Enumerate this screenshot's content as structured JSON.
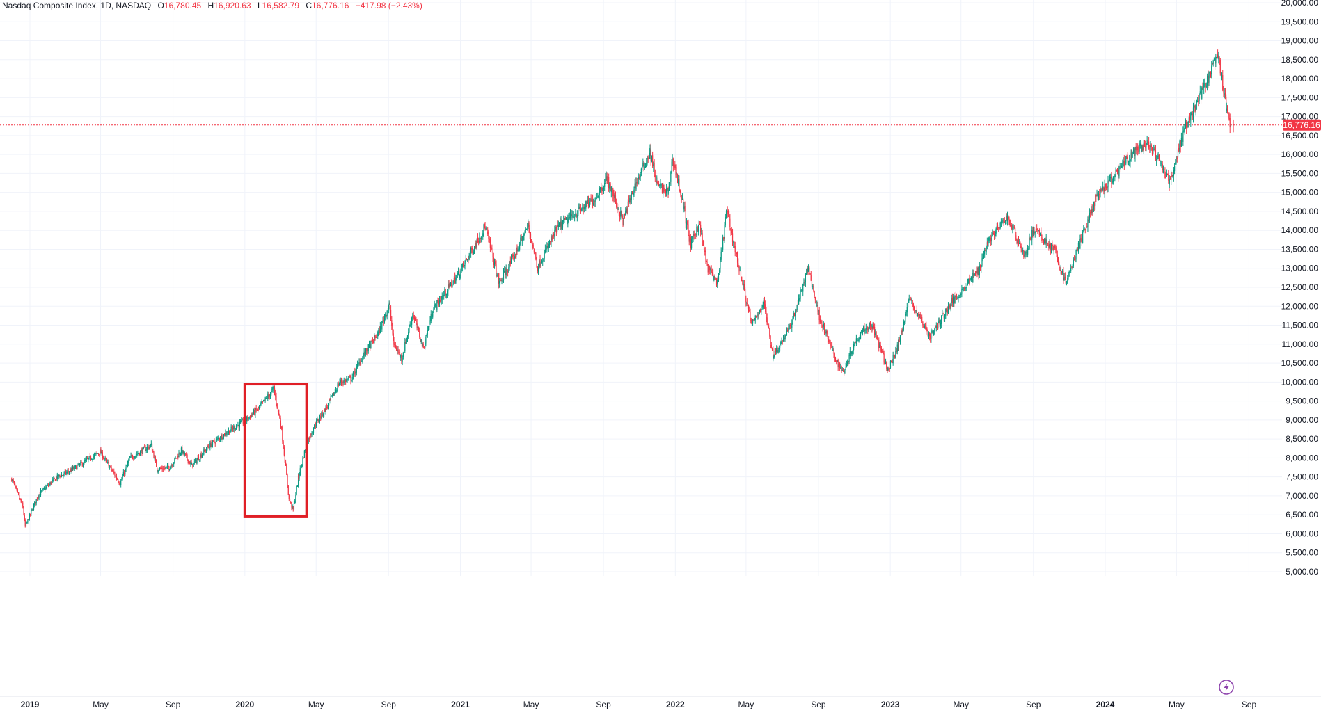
{
  "legend": {
    "symbol": "Nasdaq Composite Index, 1D, NASDAQ",
    "o_label": "O",
    "o_value": "16,780.45",
    "h_label": "H",
    "h_value": "16,920.63",
    "l_label": "L",
    "l_value": "16,582.79",
    "c_label": "C",
    "c_value": "16,776.16",
    "change": "−417.98 (−2.43%)"
  },
  "price_tag": "16,776.16",
  "icon": "lightning-icon",
  "colors": {
    "up": "#089981",
    "down": "#f23645",
    "highlight": "#e01f26",
    "grid": "#f0f3fa",
    "tag": "#f23645"
  },
  "chart_data": {
    "type": "candlestick",
    "title": "Nasdaq Composite Index, 1D, NASDAQ",
    "ylim": [
      5000,
      20000
    ],
    "y_ticks": [
      "20,000.00",
      "19,500.00",
      "19,000.00",
      "18,500.00",
      "18,000.00",
      "17,500.00",
      "17,000.00",
      "16,500.00",
      "16,000.00",
      "15,500.00",
      "15,000.00",
      "14,500.00",
      "14,000.00",
      "13,500.00",
      "13,000.00",
      "12,500.00",
      "12,000.00",
      "11,500.00",
      "11,000.00",
      "10,500.00",
      "10,000.00",
      "9,500.00",
      "9,000.00",
      "8,500.00",
      "8,000.00",
      "7,500.00",
      "7,000.00",
      "6,500.00",
      "6,000.00",
      "5,500.00",
      "5,000.00"
    ],
    "x_ticks": [
      {
        "label": "2019",
        "date": "2019-01-01",
        "year": true
      },
      {
        "label": "May",
        "date": "2019-05-01"
      },
      {
        "label": "Sep",
        "date": "2019-09-01"
      },
      {
        "label": "2020",
        "date": "2020-01-01",
        "year": true
      },
      {
        "label": "May",
        "date": "2020-05-01"
      },
      {
        "label": "Sep",
        "date": "2020-09-01"
      },
      {
        "label": "2021",
        "date": "2021-01-01",
        "year": true
      },
      {
        "label": "May",
        "date": "2021-05-01"
      },
      {
        "label": "Sep",
        "date": "2021-09-01"
      },
      {
        "label": "2022",
        "date": "2022-01-01",
        "year": true
      },
      {
        "label": "May",
        "date": "2022-05-01"
      },
      {
        "label": "Sep",
        "date": "2022-09-01"
      },
      {
        "label": "2023",
        "date": "2023-01-01",
        "year": true
      },
      {
        "label": "May",
        "date": "2023-05-01"
      },
      {
        "label": "Sep",
        "date": "2023-09-01"
      },
      {
        "label": "2024",
        "date": "2024-01-01",
        "year": true
      },
      {
        "label": "May",
        "date": "2024-05-01"
      },
      {
        "label": "Sep",
        "date": "2024-09-01"
      }
    ],
    "last_close": 16776.16,
    "series": [
      {
        "points": [
          [
            "2018-12-01",
            7450
          ],
          [
            "2018-12-20",
            6700
          ],
          [
            "2018-12-24",
            6190
          ],
          [
            "2019-01-15",
            7020
          ],
          [
            "2019-02-15",
            7480
          ],
          [
            "2019-03-15",
            7700
          ],
          [
            "2019-04-30",
            8160
          ],
          [
            "2019-05-15",
            7800
          ],
          [
            "2019-06-03",
            7330
          ],
          [
            "2019-06-20",
            8000
          ],
          [
            "2019-07-26",
            8330
          ],
          [
            "2019-08-05",
            7700
          ],
          [
            "2019-08-26",
            7750
          ],
          [
            "2019-09-15",
            8200
          ],
          [
            "2019-10-03",
            7800
          ],
          [
            "2019-10-31",
            8300
          ],
          [
            "2019-11-30",
            8660
          ],
          [
            "2019-12-31",
            8970
          ],
          [
            "2020-01-24",
            9300
          ],
          [
            "2020-02-19",
            9820
          ],
          [
            "2020-03-02",
            8900
          ],
          [
            "2020-03-09",
            7950
          ],
          [
            "2020-03-16",
            6900
          ],
          [
            "2020-03-23",
            6630
          ],
          [
            "2020-04-01",
            7500
          ],
          [
            "2020-04-15",
            8400
          ],
          [
            "2020-04-30",
            8900
          ],
          [
            "2020-05-20",
            9370
          ],
          [
            "2020-06-10",
            10000
          ],
          [
            "2020-06-30",
            10100
          ],
          [
            "2020-07-20",
            10700
          ],
          [
            "2020-08-15",
            11300
          ],
          [
            "2020-09-02",
            12050
          ],
          [
            "2020-09-10",
            11000
          ],
          [
            "2020-09-23",
            10630
          ],
          [
            "2020-10-12",
            11800
          ],
          [
            "2020-10-30",
            10900
          ],
          [
            "2020-11-15",
            11900
          ],
          [
            "2020-12-31",
            12900
          ],
          [
            "2021-02-12",
            14100
          ],
          [
            "2021-03-08",
            12600
          ],
          [
            "2021-03-31",
            13250
          ],
          [
            "2021-04-26",
            14130
          ],
          [
            "2021-05-12",
            13030
          ],
          [
            "2021-06-15",
            14070
          ],
          [
            "2021-07-20",
            14500
          ],
          [
            "2021-08-15",
            14800
          ],
          [
            "2021-09-07",
            15360
          ],
          [
            "2021-10-04",
            14250
          ],
          [
            "2021-10-25",
            15200
          ],
          [
            "2021-11-19",
            16060
          ],
          [
            "2021-12-01",
            15200
          ],
          [
            "2021-12-20",
            14980
          ],
          [
            "2021-12-27",
            15900
          ],
          [
            "2022-01-10",
            15000
          ],
          [
            "2022-01-27",
            13600
          ],
          [
            "2022-02-10",
            14200
          ],
          [
            "2022-02-24",
            13040
          ],
          [
            "2022-03-14",
            12600
          ],
          [
            "2022-03-29",
            14530
          ],
          [
            "2022-04-15",
            13300
          ],
          [
            "2022-05-11",
            11500
          ],
          [
            "2022-05-31",
            12100
          ],
          [
            "2022-06-16",
            10700
          ],
          [
            "2022-07-15",
            11450
          ],
          [
            "2022-08-15",
            13000
          ],
          [
            "2022-09-01",
            11800
          ],
          [
            "2022-09-30",
            10600
          ],
          [
            "2022-10-13",
            10260
          ],
          [
            "2022-10-31",
            10990
          ],
          [
            "2022-11-15",
            11400
          ],
          [
            "2022-12-01",
            11500
          ],
          [
            "2022-12-28",
            10300
          ],
          [
            "2023-01-15",
            11000
          ],
          [
            "2023-02-02",
            12200
          ],
          [
            "2023-03-10",
            11200
          ],
          [
            "2023-04-15",
            12100
          ],
          [
            "2023-05-31",
            12950
          ],
          [
            "2023-06-15",
            13700
          ],
          [
            "2023-07-19",
            14350
          ],
          [
            "2023-08-18",
            13300
          ],
          [
            "2023-09-01",
            14030
          ],
          [
            "2023-10-06",
            13500
          ],
          [
            "2023-10-26",
            12600
          ],
          [
            "2023-11-15",
            13500
          ],
          [
            "2023-12-15",
            14800
          ],
          [
            "2024-02-15",
            16000
          ],
          [
            "2024-03-15",
            16300
          ],
          [
            "2024-04-19",
            15280
          ],
          [
            "2024-05-15",
            16700
          ],
          [
            "2024-06-15",
            17700
          ],
          [
            "2024-07-10",
            18600
          ],
          [
            "2024-07-17",
            18000
          ],
          [
            "2024-07-25",
            17100
          ],
          [
            "2024-08-02",
            16776
          ]
        ]
      }
    ]
  }
}
